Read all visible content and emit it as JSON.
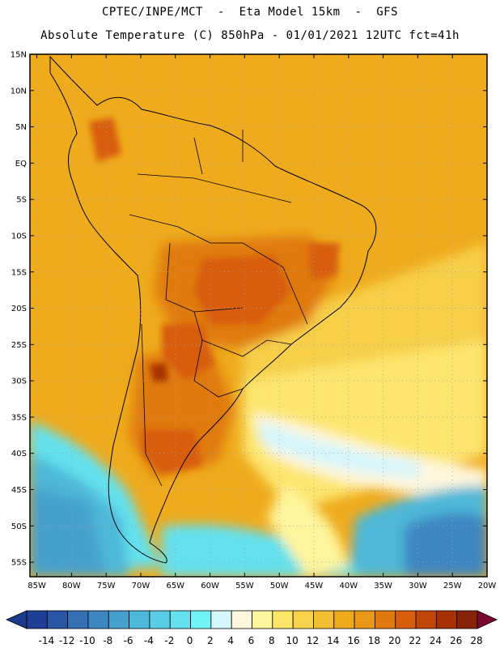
{
  "header": {
    "line1": "CPTEC/INPE/MCT  -  Eta Model 15km  -  GFS",
    "line2": "Absolute Temperature (C) 850hPa - 01/01/2021 12UTC fct=41h"
  },
  "map": {
    "lat_labels": [
      "15N",
      "10N",
      "5N",
      "EQ",
      "5S",
      "10S",
      "15S",
      "20S",
      "25S",
      "30S",
      "35S",
      "40S",
      "45S",
      "50S",
      "55S"
    ],
    "lon_labels": [
      "85W",
      "80W",
      "75W",
      "70W",
      "65W",
      "60W",
      "55W",
      "50W",
      "45W",
      "40W",
      "35W",
      "30W",
      "25W",
      "20W"
    ],
    "lat_range": [
      15,
      -57
    ],
    "lon_range": [
      -86,
      -20
    ],
    "grid": "dotted"
  },
  "colorbar": {
    "labels": [
      "-14",
      "-12",
      "-10",
      "-8",
      "-6",
      "-4",
      "-2",
      "0",
      "2",
      "4",
      "6",
      "8",
      "10",
      "12",
      "14",
      "16",
      "18",
      "20",
      "22",
      "24",
      "26",
      "28"
    ],
    "colors": [
      "#1e3f95",
      "#2a56a6",
      "#3570b5",
      "#3d86c2",
      "#45a0cd",
      "#4db8d8",
      "#58cde3",
      "#64e1ee",
      "#72f4f6",
      "#d5f6fb",
      "#fff7dd",
      "#fff59c",
      "#fde56a",
      "#f8d24b",
      "#f3bd34",
      "#eeaa1a",
      "#e99716",
      "#e07a10",
      "#d85d0c",
      "#c04608",
      "#a83005",
      "#872408"
    ],
    "min_color": "#1a3a8c",
    "max_color": "#7a0a30"
  }
}
